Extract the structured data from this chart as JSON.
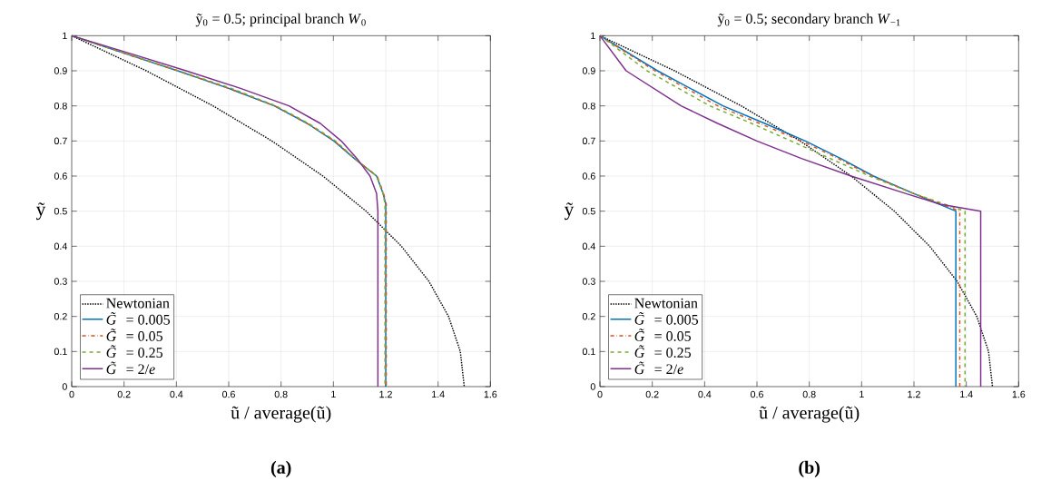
{
  "chart_data": [
    {
      "type": "line",
      "title": "ỹ$_{0}$ = 0.5; principal branch *W*$_{0}$",
      "xlabel": "ũ / average(ũ)",
      "ylabel": "ỹ",
      "annotations": [
        "(a)"
      ],
      "xlim": [
        0,
        1.6
      ],
      "ylim": [
        0,
        1
      ],
      "xticks": [
        0,
        0.2,
        0.4,
        0.6,
        0.8,
        1,
        1.2,
        1.4,
        1.6
      ],
      "yticks": [
        0,
        0.1,
        0.2,
        0.3,
        0.4,
        0.5,
        0.6,
        0.7,
        0.8,
        0.9,
        1
      ],
      "grid": true,
      "legend": "bottom left",
      "series": [
        {
          "name": "Newtonian",
          "color": "#000000",
          "line_style": "dotted",
          "x": [
            0,
            0.285,
            0.54,
            0.765,
            0.96,
            1.125,
            1.26,
            1.365,
            1.44,
            1.485,
            1.5
          ],
          "values": [
            1,
            0.9,
            0.8,
            0.7,
            0.6,
            0.5,
            0.4,
            0.3,
            0.2,
            0.1,
            0
          ]
        },
        {
          "name": "*G̃* = 0.005",
          "color": "#0072bd",
          "line_style": "solid",
          "x": [
            0,
            0.2,
            0.405,
            0.6,
            0.774,
            0.9,
            1.002,
            1.08,
            1.165,
            1.19,
            1.2,
            1.2
          ],
          "values": [
            1,
            0.95,
            0.9,
            0.85,
            0.8,
            0.75,
            0.7,
            0.65,
            0.6,
            0.55,
            0.52,
            0
          ]
        },
        {
          "name": "*G̃* = 0.05",
          "color": "#d95319",
          "line_style": "dashdot",
          "x": [
            0,
            0.2,
            0.405,
            0.6,
            0.776,
            0.9,
            1.004,
            1.08,
            1.167,
            1.192,
            1.202,
            1.202
          ],
          "values": [
            1,
            0.95,
            0.9,
            0.85,
            0.8,
            0.75,
            0.7,
            0.65,
            0.6,
            0.55,
            0.52,
            0
          ]
        },
        {
          "name": "*G̃* = 0.25",
          "color": "#77ac30",
          "line_style": "dashed",
          "x": [
            0,
            0.205,
            0.41,
            0.61,
            0.78,
            0.905,
            1.008,
            1.082,
            1.165,
            1.19,
            1.197,
            1.197
          ],
          "values": [
            1,
            0.95,
            0.9,
            0.85,
            0.8,
            0.75,
            0.7,
            0.65,
            0.6,
            0.55,
            0.52,
            0
          ]
        },
        {
          "name": "*G̃* = 2/*e*",
          "color": "#7e2f8e",
          "line_style": "solid",
          "x": [
            0,
            0.22,
            0.437,
            0.645,
            0.83,
            0.95,
            1.03,
            1.09,
            1.14,
            1.165,
            1.17,
            1.17
          ],
          "values": [
            1,
            0.95,
            0.9,
            0.85,
            0.8,
            0.75,
            0.7,
            0.65,
            0.6,
            0.55,
            0.5,
            0
          ]
        }
      ]
    },
    {
      "type": "line",
      "title": "ỹ$_{0}$ = 0.5; secondary branch *W*$_{−1}$",
      "xlabel": "ũ / average(ũ)",
      "ylabel": "ỹ",
      "annotations": [
        "(b)"
      ],
      "xlim": [
        0,
        1.6
      ],
      "ylim": [
        0,
        1
      ],
      "xticks": [
        0,
        0.2,
        0.4,
        0.6,
        0.8,
        1,
        1.2,
        1.4,
        1.6
      ],
      "yticks": [
        0,
        0.1,
        0.2,
        0.3,
        0.4,
        0.5,
        0.6,
        0.7,
        0.8,
        0.9,
        1
      ],
      "grid": true,
      "legend": "bottom left",
      "series": [
        {
          "name": "Newtonian",
          "color": "#000000",
          "line_style": "dotted",
          "x": [
            0,
            0.285,
            0.54,
            0.765,
            0.96,
            1.125,
            1.26,
            1.365,
            1.44,
            1.485,
            1.5
          ],
          "values": [
            1,
            0.9,
            0.8,
            0.7,
            0.6,
            0.5,
            0.4,
            0.3,
            0.2,
            0.1,
            0
          ]
        },
        {
          "name": "*G̃* = 0.005",
          "color": "#0072bd",
          "line_style": "solid",
          "x": [
            0,
            0.22,
            0.47,
            0.63,
            0.785,
            0.92,
            1.045,
            1.2,
            1.36,
            1.36
          ],
          "values": [
            1,
            0.9,
            0.8,
            0.75,
            0.7,
            0.65,
            0.6,
            0.55,
            0.5,
            0
          ]
        },
        {
          "name": "*G̃* = 0.05",
          "color": "#d95319",
          "line_style": "dashdot",
          "x": [
            0,
            0.21,
            0.45,
            0.61,
            0.77,
            0.91,
            1.04,
            1.2,
            1.375,
            1.375
          ],
          "values": [
            1,
            0.9,
            0.8,
            0.75,
            0.7,
            0.65,
            0.6,
            0.55,
            0.5,
            0
          ]
        },
        {
          "name": "*G̃* = 0.25",
          "color": "#77ac30",
          "line_style": "dashed",
          "x": [
            0,
            0.18,
            0.42,
            0.58,
            0.73,
            0.88,
            1.03,
            1.2,
            1.395,
            1.395
          ],
          "values": [
            1,
            0.9,
            0.8,
            0.75,
            0.7,
            0.65,
            0.6,
            0.55,
            0.5,
            0
          ]
        },
        {
          "name": "*G̃* = 2/*e*",
          "color": "#7e2f8e",
          "line_style": "solid",
          "x": [
            0,
            0.1,
            0.31,
            0.45,
            0.6,
            0.77,
            0.96,
            1.17,
            1.3,
            1.455,
            1.455
          ],
          "values": [
            1,
            0.9,
            0.8,
            0.75,
            0.7,
            0.65,
            0.6,
            0.55,
            0.52,
            0.5,
            0
          ]
        }
      ]
    }
  ]
}
